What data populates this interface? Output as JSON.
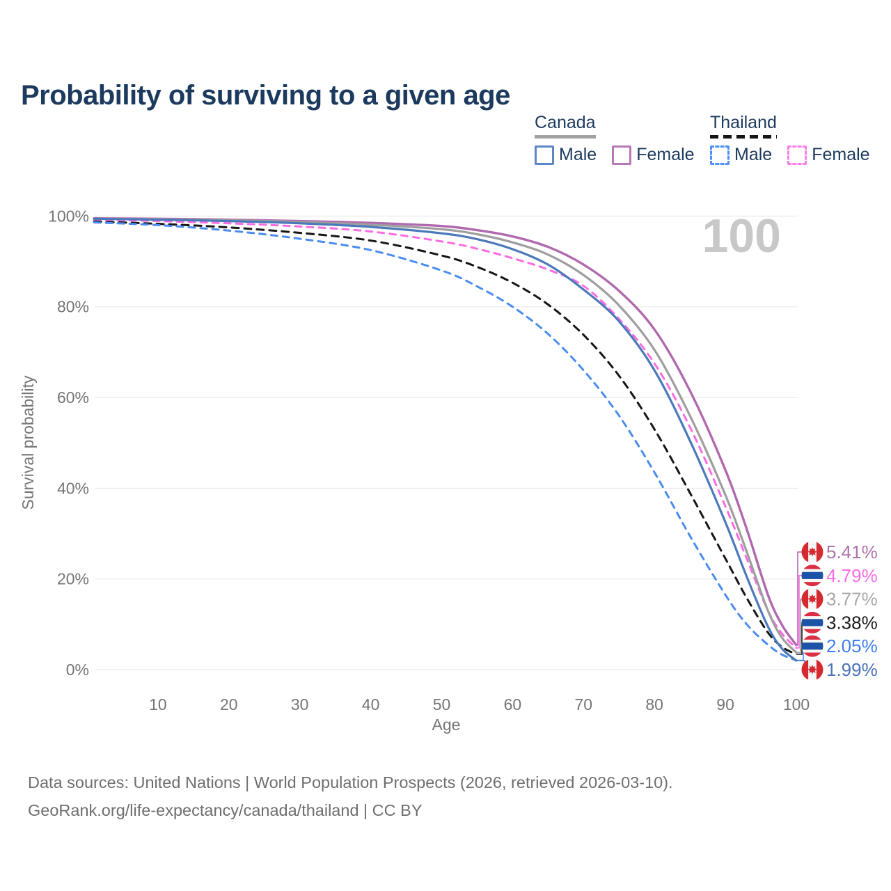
{
  "title": "Probability of surviving to a given age",
  "legend": {
    "groups": [
      {
        "id": "canada",
        "label": "Canada",
        "underline_color": "#a3a3a3",
        "underline_style": "solid",
        "items": [
          {
            "label": "Male",
            "color": "#5b87c5",
            "style": "solid"
          },
          {
            "label": "Female",
            "color": "#b779b4",
            "style": "solid"
          }
        ]
      },
      {
        "id": "thailand",
        "label": "Thailand",
        "underline_color": "#141414",
        "underline_style": "dashed",
        "items": [
          {
            "label": "Male",
            "color": "#4d90f3",
            "style": "dashed"
          },
          {
            "label": "Female",
            "color": "#fc7ce8",
            "style": "dashed"
          }
        ]
      }
    ]
  },
  "chart_data": {
    "type": "line",
    "xlabel": "Age",
    "ylabel": "Survival probability",
    "x_ticks": [
      10,
      20,
      30,
      40,
      50,
      60,
      70,
      80,
      90,
      100
    ],
    "y_ticks": [
      0,
      20,
      40,
      60,
      80,
      100
    ],
    "y_tick_suffix": "%",
    "xlim": [
      0,
      100
    ],
    "ylim": [
      0,
      100
    ],
    "grid": "horizontal",
    "legend_position": "top-right",
    "hover_age_watermark": "100",
    "axis_text_color": "#757575",
    "grid_color": "#ebebeb",
    "watermark_color": "#c8c8c8",
    "flag_colors": {
      "canada_red": "#d52b30",
      "thailand_red": "#da2f44",
      "thailand_blue": "#1d53a6",
      "flag_white": "#f7f7f7"
    },
    "series": [
      {
        "id": "canada-female",
        "country": "Canada",
        "sex": "Female",
        "color": "#b169ae",
        "label_color": "#ab74a9",
        "dash": null,
        "width": 3.4,
        "flag": "canada",
        "end_label": "5.41%",
        "end_value": 5.41,
        "points": [
          [
            1,
            99.5
          ],
          [
            10,
            99.4
          ],
          [
            20,
            99.2
          ],
          [
            30,
            98.9
          ],
          [
            40,
            98.5
          ],
          [
            50,
            97.8
          ],
          [
            55,
            96.9
          ],
          [
            60,
            95.5
          ],
          [
            65,
            93.2
          ],
          [
            70,
            89.3
          ],
          [
            75,
            83.5
          ],
          [
            80,
            75.0
          ],
          [
            85,
            61.5
          ],
          [
            90,
            44.0
          ],
          [
            93,
            31.0
          ],
          [
            96,
            16.5
          ],
          [
            98,
            9.8
          ],
          [
            100,
            5.41
          ]
        ]
      },
      {
        "id": "thailand-female",
        "country": "Thailand",
        "sex": "Female",
        "color": "#fb6ce4",
        "label_color": "#fb6ce4",
        "dash": "9 8",
        "width": 3,
        "flag": "thailand",
        "end_label": "4.79%",
        "end_value": 4.79,
        "points": [
          [
            1,
            99.2
          ],
          [
            10,
            98.9
          ],
          [
            20,
            98.4
          ],
          [
            30,
            97.7
          ],
          [
            40,
            96.6
          ],
          [
            50,
            94.4
          ],
          [
            55,
            92.8
          ],
          [
            60,
            90.7
          ],
          [
            65,
            88.2
          ],
          [
            70,
            84.6
          ],
          [
            75,
            77.3
          ],
          [
            80,
            67.5
          ],
          [
            85,
            53.5
          ],
          [
            90,
            36.0
          ],
          [
            93,
            24.5
          ],
          [
            96,
            13.0
          ],
          [
            98,
            7.9
          ],
          [
            100,
            4.79
          ]
        ]
      },
      {
        "id": "canada-all",
        "country": "Canada",
        "sex": "All",
        "color": "#9e9e9e",
        "label_color": "#a9a9a9",
        "dash": null,
        "width": 3.2,
        "flag": "canada",
        "end_label": "3.77%",
        "end_value": 3.77,
        "points": [
          [
            1,
            99.4
          ],
          [
            10,
            99.3
          ],
          [
            20,
            99.1
          ],
          [
            30,
            98.7
          ],
          [
            40,
            98.1
          ],
          [
            50,
            97.1
          ],
          [
            55,
            96.0
          ],
          [
            60,
            94.2
          ],
          [
            65,
            91.5
          ],
          [
            70,
            87.0
          ],
          [
            75,
            80.3
          ],
          [
            80,
            70.5
          ],
          [
            85,
            56.0
          ],
          [
            90,
            38.5
          ],
          [
            93,
            26.0
          ],
          [
            96,
            13.0
          ],
          [
            98,
            7.0
          ],
          [
            100,
            3.77
          ]
        ]
      },
      {
        "id": "thailand-all",
        "country": "Thailand",
        "sex": "All",
        "color": "#161616",
        "label_color": "#1a1a1a",
        "dash": "10 8",
        "width": 3,
        "flag": "thailand",
        "end_label": "3.38%",
        "end_value": 3.38,
        "points": [
          [
            1,
            98.8
          ],
          [
            10,
            98.3
          ],
          [
            20,
            97.5
          ],
          [
            30,
            96.3
          ],
          [
            40,
            94.6
          ],
          [
            50,
            91.3
          ],
          [
            55,
            88.8
          ],
          [
            60,
            85.3
          ],
          [
            65,
            80.5
          ],
          [
            70,
            73.8
          ],
          [
            75,
            64.8
          ],
          [
            80,
            53.0
          ],
          [
            85,
            39.0
          ],
          [
            90,
            24.5
          ],
          [
            93,
            15.8
          ],
          [
            96,
            8.2
          ],
          [
            98,
            5.0
          ],
          [
            100,
            3.38
          ]
        ]
      },
      {
        "id": "thailand-male",
        "country": "Thailand",
        "sex": "Male",
        "color": "#4a8cf0",
        "label_color": "#3e7ef2",
        "dash": "9 8",
        "width": 3,
        "flag": "thailand",
        "end_label": "2.05%",
        "end_value": 2.05,
        "points": [
          [
            1,
            98.6
          ],
          [
            10,
            98.0
          ],
          [
            20,
            96.8
          ],
          [
            30,
            95.0
          ],
          [
            40,
            92.5
          ],
          [
            50,
            88.0
          ],
          [
            55,
            84.5
          ],
          [
            60,
            80.0
          ],
          [
            65,
            74.0
          ],
          [
            70,
            66.0
          ],
          [
            75,
            56.0
          ],
          [
            80,
            43.5
          ],
          [
            85,
            29.5
          ],
          [
            90,
            16.5
          ],
          [
            93,
            10.0
          ],
          [
            96,
            5.5
          ],
          [
            98,
            3.3
          ],
          [
            100,
            2.05
          ]
        ]
      },
      {
        "id": "canada-male",
        "country": "Canada",
        "sex": "Male",
        "color": "#4b79ba",
        "label_color": "#4a73b8",
        "dash": null,
        "width": 3.2,
        "flag": "canada",
        "end_label": "1.99%",
        "end_value": 1.99,
        "points": [
          [
            1,
            99.4
          ],
          [
            10,
            99.2
          ],
          [
            20,
            98.9
          ],
          [
            30,
            98.4
          ],
          [
            40,
            97.6
          ],
          [
            50,
            96.2
          ],
          [
            55,
            94.9
          ],
          [
            60,
            92.7
          ],
          [
            65,
            89.3
          ],
          [
            70,
            83.8
          ],
          [
            75,
            76.8
          ],
          [
            80,
            66.0
          ],
          [
            85,
            50.5
          ],
          [
            90,
            32.5
          ],
          [
            93,
            20.5
          ],
          [
            96,
            9.5
          ],
          [
            98,
            4.6
          ],
          [
            100,
            1.99
          ]
        ]
      }
    ]
  },
  "footer": {
    "line1": "Data sources: United Nations | World Population Prospects (2026, retrieved 2026-03-10).",
    "line2": "GeoRank.org/life-expectancy/canada/thailand | CC BY"
  }
}
